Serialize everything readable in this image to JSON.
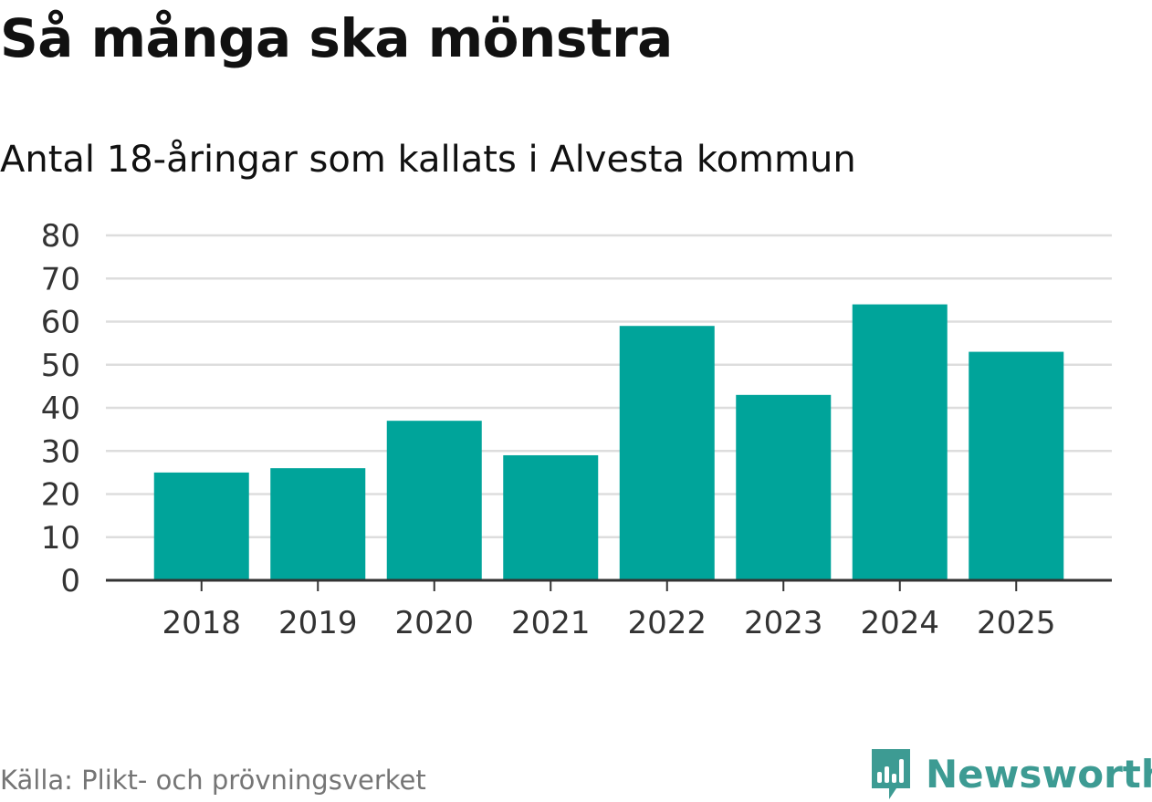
{
  "header": {
    "title": "Så många ska mönstra",
    "subtitle": "Antal 18-åringar som kallats i Alvesta kommun"
  },
  "footer": {
    "source": "Källa: Plikt- och prövningsverket",
    "brand": "Newsworthy"
  },
  "colors": {
    "bar": "#00a49a",
    "grid": "#dddddd",
    "axis": "#333333",
    "brand": "#3d9b93"
  },
  "chart_data": {
    "type": "bar",
    "title": "Så många ska mönstra",
    "subtitle": "Antal 18-åringar som kallats i Alvesta kommun",
    "xlabel": "",
    "ylabel": "",
    "categories": [
      "2018",
      "2019",
      "2020",
      "2021",
      "2022",
      "2023",
      "2024",
      "2025"
    ],
    "values": [
      25,
      26,
      37,
      29,
      59,
      43,
      64,
      53
    ],
    "ylim": [
      0,
      80
    ],
    "yticks": [
      "0",
      "10",
      "20",
      "30",
      "40",
      "50",
      "60",
      "70",
      "80"
    ],
    "grid": true
  }
}
